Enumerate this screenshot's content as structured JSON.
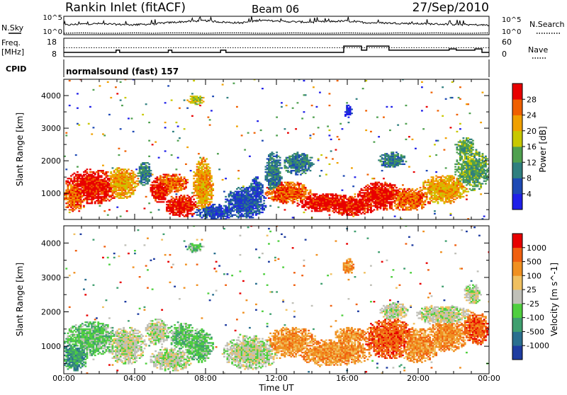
{
  "header": {
    "station": "Rankin Inlet (fitACF)",
    "beam": "Beam 06",
    "date": "27/Sep/2010"
  },
  "labels": {
    "nsky": "N.Sky",
    "nsearch": "N.Search",
    "freq_line1": "Freq.",
    "freq_line2": "[MHz]",
    "nave": "Nave",
    "cpid": "CPID",
    "cpid_value": "normalsound (fast) 157",
    "noise_left_top": "10^5",
    "noise_left_bottom": "10^0",
    "noise_right_top": "10^5",
    "noise_right_bottom": "10^0",
    "freq_left_top": "18",
    "freq_left_bottom": "8",
    "nave_right_top": "60",
    "nave_right_bottom": "0"
  },
  "chart_data": [
    {
      "type": "line",
      "name": "noise",
      "x": [
        0,
        1,
        2,
        3,
        4,
        5,
        6,
        7,
        8,
        9,
        10,
        11,
        12,
        13,
        14,
        15,
        16,
        17,
        18,
        19,
        20,
        21,
        22,
        23,
        24
      ],
      "ylim": [
        0,
        5
      ],
      "series": [
        {
          "values": [
            2.6,
            2.9,
            3.0,
            2.8,
            2.7,
            2.9,
            3.3,
            3.6,
            3.8,
            3.4,
            3.2,
            3.9,
            3.7,
            3.5,
            3.4,
            3.6,
            3.7,
            3.3,
            3.2,
            3.1,
            3.0,
            2.9,
            2.8,
            2.7,
            2.6
          ]
        },
        {
          "values": [
            0.4,
            0.5,
            0.4,
            0.4,
            0.5,
            0.4,
            0.5,
            0.5,
            0.4,
            0.5,
            0.5,
            0.4,
            0.4,
            0.5,
            0.4,
            0.4,
            0.5,
            0.4,
            0.4,
            0.5,
            0.4,
            0.5,
            0.4,
            0.4,
            0.5
          ]
        }
      ]
    },
    {
      "type": "line",
      "name": "freq-nave",
      "freq": {
        "ylim": [
          8,
          18
        ],
        "steps": [
          [
            0,
            10.3
          ],
          [
            2.95,
            11.5
          ],
          [
            3.15,
            10.3
          ],
          [
            5.9,
            11.5
          ],
          [
            6.1,
            10.3
          ],
          [
            8.85,
            11.5
          ],
          [
            9.15,
            10.3
          ],
          [
            15.8,
            13.7
          ],
          [
            16.8,
            11.5
          ],
          [
            17.1,
            13.7
          ],
          [
            18.35,
            11.5
          ],
          [
            21.75,
            12.2
          ],
          [
            22.15,
            11.5
          ],
          [
            23.2,
            12.2
          ],
          [
            23.6,
            10.3
          ],
          [
            24,
            10.3
          ]
        ]
      },
      "nave": {
        "ylim": [
          0,
          60
        ],
        "level": 29
      }
    },
    {
      "type": "heatmap",
      "name": "power",
      "ylabel": "Slant Range [km]",
      "ylim": [
        200,
        4500
      ],
      "yticks": [
        1000,
        2000,
        3000,
        4000
      ],
      "colorbar": {
        "label": "Power [dB]",
        "ticks": [
          "4",
          "8",
          "12",
          "16",
          "20",
          "24",
          "28"
        ],
        "colors": [
          "#1f1fe8",
          "#1d49b4",
          "#2f7f7f",
          "#4fa04f",
          "#c8c800",
          "#f0a000",
          "#f06000",
          "#e80000"
        ]
      }
    },
    {
      "type": "heatmap",
      "name": "velocity",
      "ylabel": "Slant Range [km]",
      "xlabel": "Time UT",
      "ylim": [
        200,
        4500
      ],
      "yticks": [
        1000,
        2000,
        3000,
        4000
      ],
      "xticks": [
        "00:00",
        "04:00",
        "08:00",
        "12:00",
        "16:00",
        "20:00",
        "00:00"
      ],
      "colorbar": {
        "label": "Velocity [m s^-1]",
        "ticks": [
          "1000",
          "500",
          "100",
          "25",
          "-25",
          "-100",
          "-500",
          "-1000"
        ],
        "colors": [
          "#1e3ca0",
          "#2a6f8f",
          "#3f9f6f",
          "#4fcf3f",
          "#c0c0b8",
          "#f0c060",
          "#f09020",
          "#f06010",
          "#e80000"
        ]
      }
    }
  ]
}
